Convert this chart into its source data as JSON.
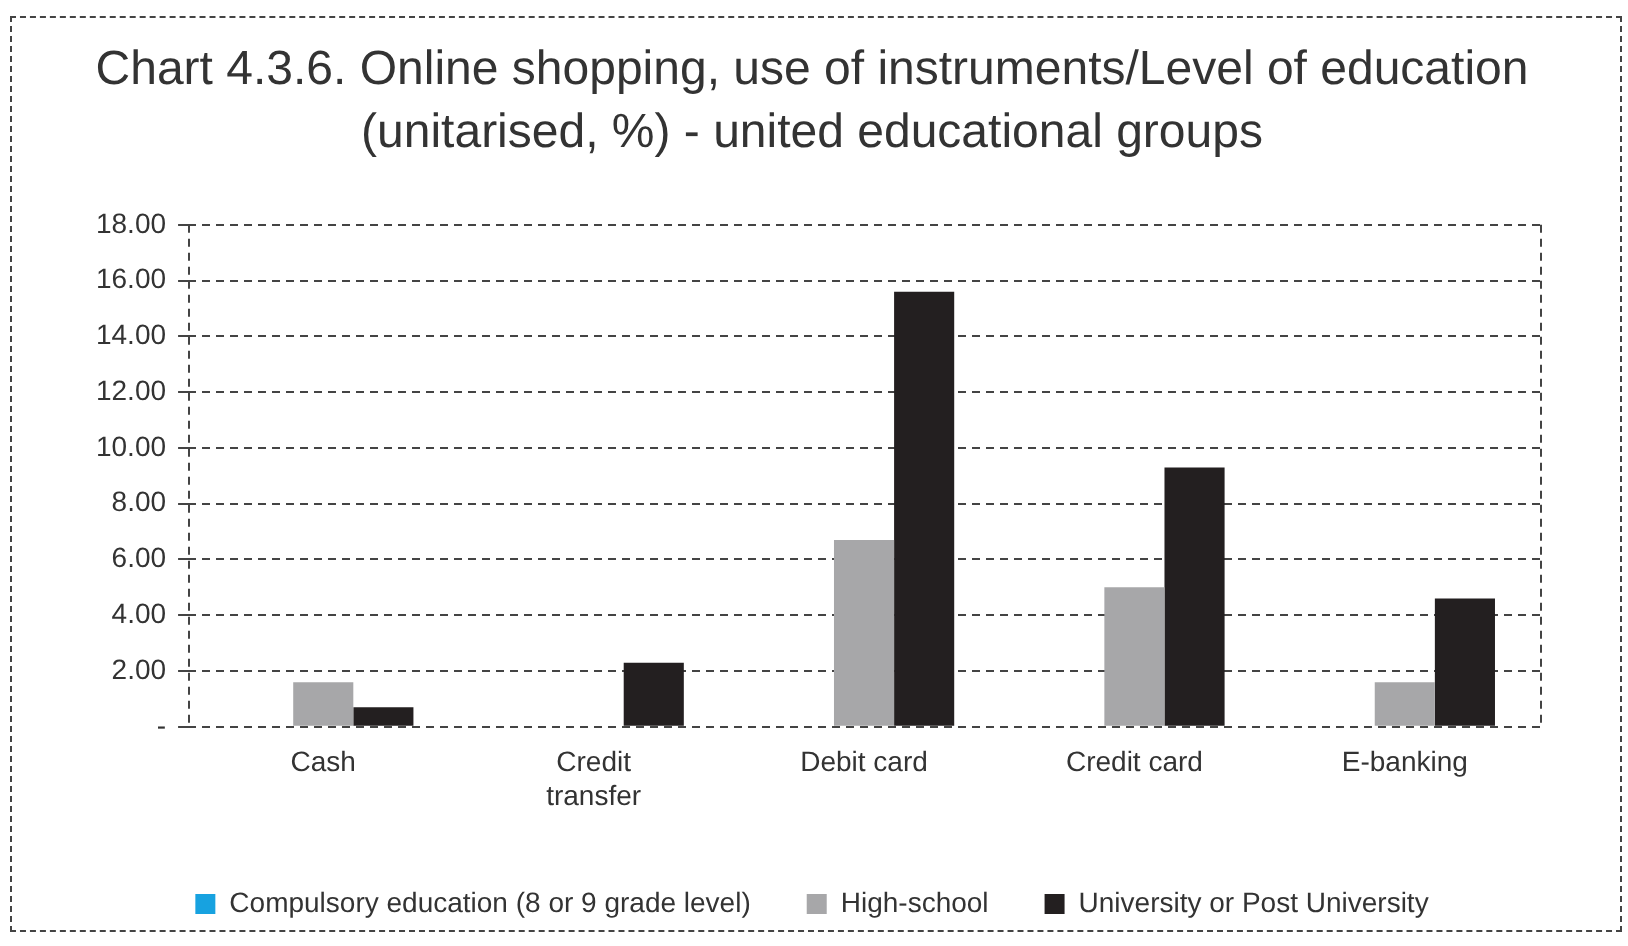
{
  "chart_data": {
    "type": "bar",
    "title": "Chart 4.3.6. Online shopping, use of instruments/Level of education (unitarised, %) - united educational groups",
    "categories": [
      "Cash",
      "Credit transfer",
      "Debit card",
      "Credit card",
      "E-banking"
    ],
    "series": [
      {
        "name": "Compulsory education (8 or 9 grade level)",
        "color": "#17a2e0",
        "values": [
          null,
          null,
          null,
          null,
          null
        ]
      },
      {
        "name": "High-school",
        "color": "#a7a7a9",
        "values": [
          1.6,
          null,
          6.7,
          5.0,
          1.6
        ]
      },
      {
        "name": "University or Post University",
        "color": "#231f20",
        "values": [
          0.7,
          2.3,
          15.6,
          9.3,
          4.6
        ]
      }
    ],
    "ylim": [
      0,
      18
    ],
    "yticks": [
      {
        "value": 0,
        "label": "-"
      },
      {
        "value": 2,
        "label": "2.00"
      },
      {
        "value": 4,
        "label": "4.00"
      },
      {
        "value": 6,
        "label": "6.00"
      },
      {
        "value": 8,
        "label": "8.00"
      },
      {
        "value": 10,
        "label": "10.00"
      },
      {
        "value": 12,
        "label": "12.00"
      },
      {
        "value": 14,
        "label": "14.00"
      },
      {
        "value": 16,
        "label": "16.00"
      },
      {
        "value": 18,
        "label": "18.00"
      }
    ],
    "grid": "y",
    "legend": "bottom"
  }
}
